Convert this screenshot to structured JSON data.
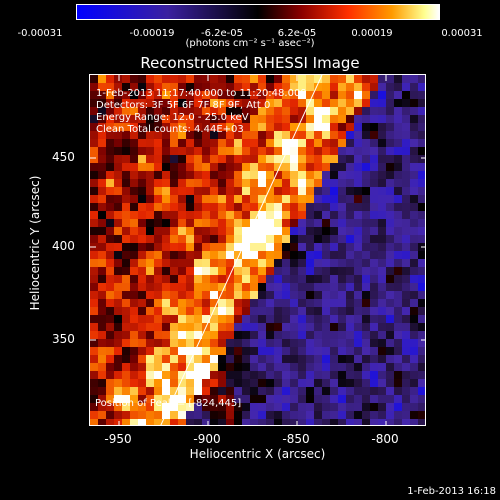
{
  "colorbar": {
    "ticks": [
      "-0.00031",
      "-0.00019",
      "-6.2e-05",
      "6.2e-05",
      "0.00019",
      "0.00031"
    ],
    "units": "(photons cm⁻² s⁻¹ asec⁻²)",
    "colors": [
      "#0000ff",
      "#3a1f8a",
      "#000000",
      "#8b0000",
      "#ff4500",
      "#ffff80",
      "#ffffff"
    ]
  },
  "title": "Reconstructed RHESSI Image",
  "info": {
    "time_range": "1-Feb-2013 11:17:40.000 to 11:20:48.000",
    "detectors": "Detectors: 3F 5F 6F 7F 8F 9F, Att 0",
    "energy": "Energy Range: 12.0 - 25.0 keV",
    "clean": "Clean    Total counts: 4.44E+03"
  },
  "peak": "Position of Peak = [-824,445]",
  "axes": {
    "xlabel": "Heliocentric X (arcsec)",
    "ylabel": "Heliocentric Y (arcsec)",
    "xticks": [
      "-950",
      "-900",
      "-850",
      "-800"
    ],
    "yticks": [
      "450",
      "400",
      "350"
    ]
  },
  "timestamp": "1-Feb-2013 16:18"
}
